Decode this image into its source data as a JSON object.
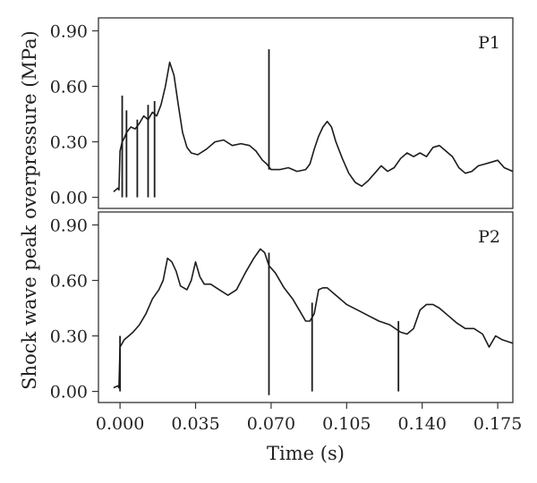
{
  "chart_data": {
    "type": "line",
    "xlabel": "Time (s)",
    "ylabel": "Shock wave peak overpressure (MPa)",
    "xlim": [
      -0.01,
      0.182
    ],
    "ylim": [
      -0.06,
      0.97
    ],
    "x_ticks": [
      0.0,
      0.035,
      0.07,
      0.105,
      0.14,
      0.175
    ],
    "x_tick_labels": [
      "0.000",
      "0.035",
      "0.070",
      "0.105",
      "0.140",
      "0.175"
    ],
    "y_ticks": [
      0.0,
      0.3,
      0.6,
      0.9
    ],
    "y_tick_labels": [
      "0.00",
      "0.30",
      "0.60",
      "0.90"
    ],
    "grid": false,
    "panels": [
      {
        "label": "P1",
        "series": [
          {
            "x": [
              -0.003,
              -0.001,
              -0.0005,
              0.0,
              0.001,
              0.002,
              0.003,
              0.005,
              0.007,
              0.009,
              0.011,
              0.013,
              0.015,
              0.017,
              0.019,
              0.021,
              0.023,
              0.025,
              0.027,
              0.029,
              0.031,
              0.033,
              0.036,
              0.04,
              0.044,
              0.048,
              0.052,
              0.056,
              0.06,
              0.063,
              0.066,
              0.068,
              0.07,
              0.074,
              0.078,
              0.082,
              0.086,
              0.088,
              0.09,
              0.092,
              0.094,
              0.096,
              0.098,
              0.1,
              0.103,
              0.106,
              0.109,
              0.112,
              0.115,
              0.118,
              0.121,
              0.124,
              0.127,
              0.13,
              0.133,
              0.136,
              0.139,
              0.142,
              0.145,
              0.148,
              0.151,
              0.154,
              0.157,
              0.16,
              0.163,
              0.166,
              0.169,
              0.172,
              0.175,
              0.178,
              0.182
            ],
            "y": [
              0.03,
              0.05,
              0.04,
              0.25,
              0.3,
              0.32,
              0.35,
              0.38,
              0.37,
              0.4,
              0.44,
              0.42,
              0.46,
              0.44,
              0.5,
              0.6,
              0.73,
              0.66,
              0.5,
              0.35,
              0.27,
              0.24,
              0.23,
              0.26,
              0.3,
              0.31,
              0.28,
              0.29,
              0.28,
              0.25,
              0.2,
              0.18,
              0.15,
              0.15,
              0.16,
              0.14,
              0.15,
              0.18,
              0.26,
              0.33,
              0.38,
              0.41,
              0.38,
              0.3,
              0.21,
              0.13,
              0.08,
              0.06,
              0.09,
              0.13,
              0.17,
              0.14,
              0.16,
              0.21,
              0.24,
              0.22,
              0.24,
              0.22,
              0.27,
              0.28,
              0.25,
              0.22,
              0.16,
              0.13,
              0.14,
              0.17,
              0.18,
              0.19,
              0.2,
              0.16,
              0.14
            ]
          }
        ],
        "spikes": [
          {
            "x": 0.001,
            "y_top": 0.55
          },
          {
            "x": 0.003,
            "y_top": 0.47
          },
          {
            "x": 0.008,
            "y_top": 0.42
          },
          {
            "x": 0.013,
            "y_top": 0.5
          },
          {
            "x": 0.016,
            "y_top": 0.52
          },
          {
            "x": 0.069,
            "y_top": 0.8,
            "y_bottom": 0.15
          }
        ]
      },
      {
        "label": "P2",
        "series": [
          {
            "x": [
              -0.003,
              -0.001,
              -0.0005,
              0.0,
              0.002,
              0.004,
              0.006,
              0.009,
              0.012,
              0.015,
              0.018,
              0.02,
              0.022,
              0.024,
              0.026,
              0.028,
              0.031,
              0.033,
              0.035,
              0.037,
              0.039,
              0.042,
              0.046,
              0.05,
              0.054,
              0.058,
              0.062,
              0.065,
              0.067,
              0.069,
              0.072,
              0.076,
              0.08,
              0.084,
              0.086,
              0.088,
              0.09,
              0.092,
              0.094,
              0.096,
              0.1,
              0.105,
              0.11,
              0.115,
              0.12,
              0.125,
              0.13,
              0.133,
              0.136,
              0.139,
              0.142,
              0.145,
              0.148,
              0.152,
              0.156,
              0.16,
              0.164,
              0.168,
              0.171,
              0.174,
              0.177,
              0.182
            ],
            "y": [
              0.02,
              0.03,
              0.02,
              0.24,
              0.28,
              0.3,
              0.32,
              0.36,
              0.42,
              0.5,
              0.55,
              0.6,
              0.72,
              0.7,
              0.65,
              0.57,
              0.55,
              0.6,
              0.7,
              0.62,
              0.58,
              0.58,
              0.55,
              0.52,
              0.55,
              0.64,
              0.72,
              0.77,
              0.75,
              0.68,
              0.64,
              0.56,
              0.5,
              0.42,
              0.38,
              0.38,
              0.42,
              0.55,
              0.56,
              0.56,
              0.52,
              0.47,
              0.44,
              0.41,
              0.38,
              0.36,
              0.32,
              0.31,
              0.34,
              0.44,
              0.47,
              0.47,
              0.45,
              0.41,
              0.37,
              0.34,
              0.34,
              0.31,
              0.24,
              0.3,
              0.28,
              0.26
            ]
          }
        ],
        "spikes": [
          {
            "x": 0.0,
            "y_top": 0.3
          },
          {
            "x": 0.069,
            "y_top": 0.75,
            "y_bottom": -0.02
          },
          {
            "x": 0.089,
            "y_top": 0.48
          },
          {
            "x": 0.129,
            "y_top": 0.38
          }
        ]
      }
    ]
  }
}
